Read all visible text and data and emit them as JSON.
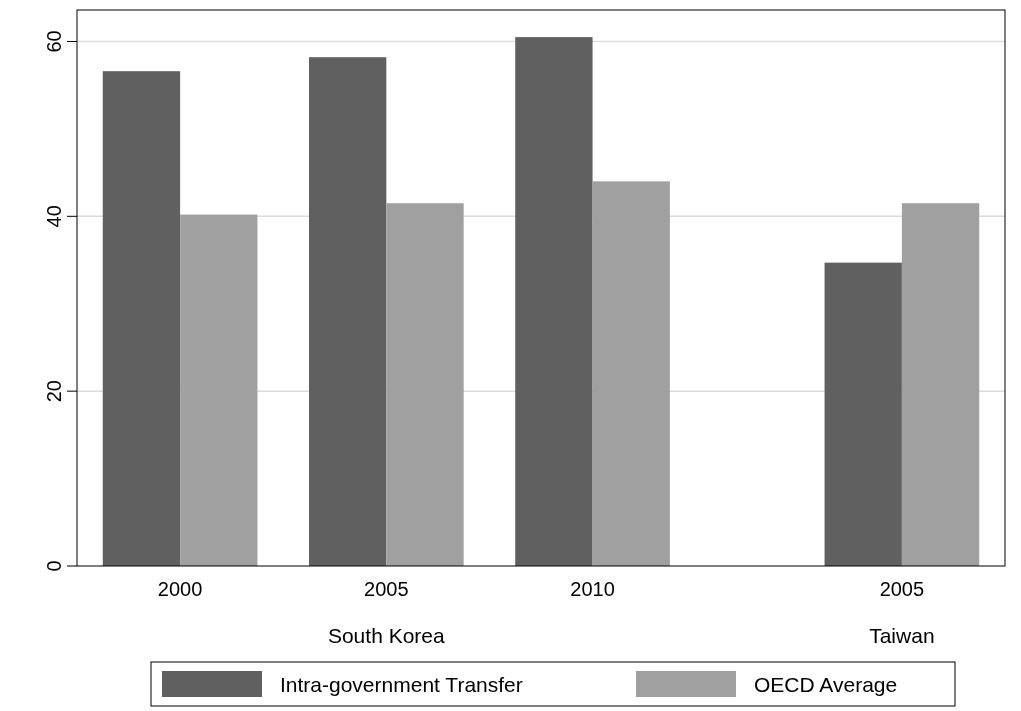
{
  "chart_data": {
    "type": "bar",
    "categories": [
      "2000",
      "2005",
      "2010",
      "2005"
    ],
    "series": [
      {
        "name": "Intra-government Transfer",
        "color": "#606060",
        "values": [
          56.6,
          58.2,
          60.5,
          34.7
        ]
      },
      {
        "name": "OECD Average",
        "color": "#a0a0a0",
        "values": [
          40.2,
          41.5,
          44.0,
          41.5
        ]
      }
    ],
    "ylim": [
      0,
      63.6
    ],
    "yticks": [
      0,
      20,
      40,
      60
    ],
    "grid": "y",
    "legend": "bottom",
    "annotations": [
      "South Korea",
      "Taiwan"
    ]
  }
}
